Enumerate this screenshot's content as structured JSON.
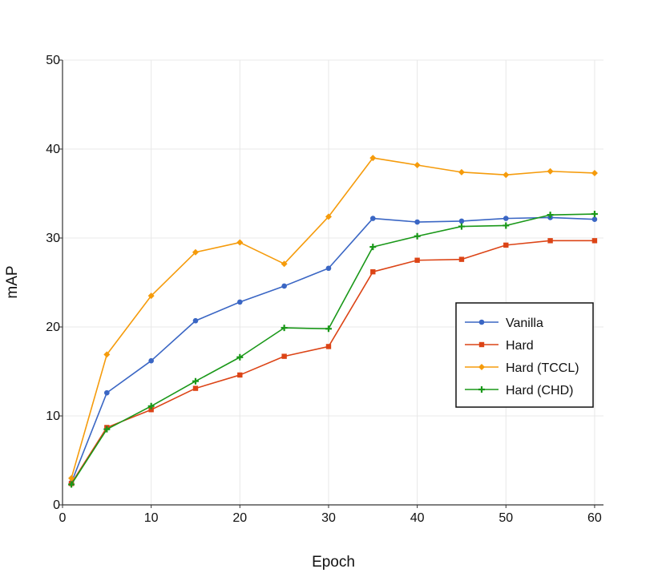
{
  "chart_data": {
    "type": "line",
    "title": "",
    "xlabel": "Epoch",
    "ylabel": "mAP",
    "xlim": [
      0,
      61
    ],
    "ylim": [
      0,
      50
    ],
    "xticks": [
      0,
      10,
      20,
      30,
      40,
      50,
      60
    ],
    "yticks": [
      0,
      10,
      20,
      30,
      40,
      50
    ],
    "grid": true,
    "legend_position": "right-middle",
    "x": [
      1,
      5,
      10,
      15,
      20,
      25,
      30,
      35,
      40,
      45,
      50,
      55,
      60
    ],
    "series": [
      {
        "name": "Vanilla",
        "color": "#3a66c4",
        "marker": "circle",
        "values": [
          2.5,
          12.6,
          16.2,
          20.7,
          22.8,
          24.6,
          26.6,
          32.2,
          31.8,
          31.9,
          32.2,
          32.3,
          32.1
        ]
      },
      {
        "name": "Hard",
        "color": "#dc4416",
        "marker": "square",
        "values": [
          2.4,
          8.7,
          10.7,
          13.1,
          14.6,
          16.7,
          17.8,
          26.2,
          27.5,
          27.6,
          29.2,
          29.7,
          29.7
        ]
      },
      {
        "name": "Hard (TCCL)",
        "color": "#f59b0b",
        "marker": "diamond",
        "values": [
          3.0,
          16.9,
          23.5,
          28.4,
          29.5,
          27.1,
          32.4,
          39.0,
          38.2,
          37.4,
          37.1,
          37.5,
          37.3
        ]
      },
      {
        "name": "Hard (CHD)",
        "color": "#1a9819",
        "marker": "plus",
        "values": [
          2.3,
          8.5,
          11.1,
          13.9,
          16.6,
          19.9,
          19.8,
          29.0,
          30.2,
          31.3,
          31.4,
          32.6,
          32.7
        ]
      }
    ]
  }
}
